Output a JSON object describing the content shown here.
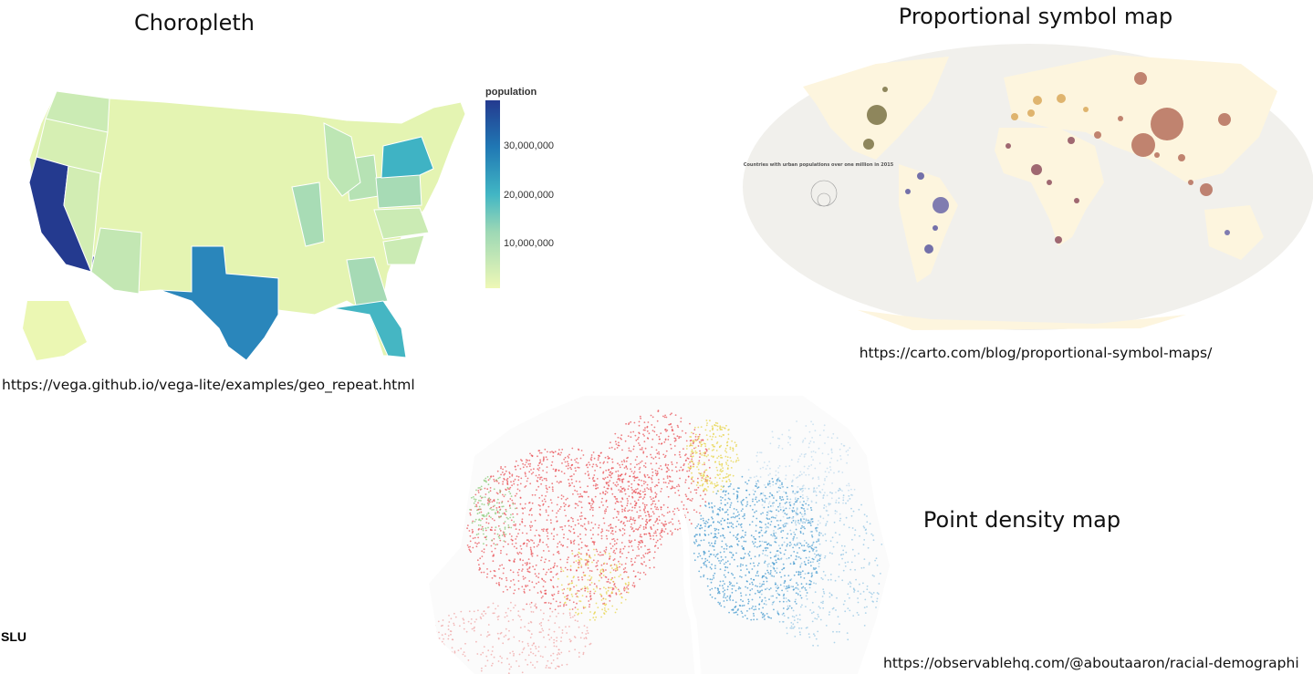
{
  "choropleth": {
    "title": "Choropleth",
    "legend_title": "population",
    "legend_labels": [
      "30,000,000",
      "20,000,000",
      "10,000,000"
    ],
    "source": "https://vega.github.io/vega-lite/examples/geo_repeat.html"
  },
  "symbol_map": {
    "title": "Proportional symbol map",
    "inset_title": "Countries with urban populations over one million in 2015",
    "source": "https://carto.com/blog/proportional-symbol-maps/"
  },
  "density_map": {
    "title": "Point density map",
    "source": "https://observablehq.com/@aboutaaron/racial-demographi"
  },
  "footer": {
    "logo": "SLU"
  }
}
